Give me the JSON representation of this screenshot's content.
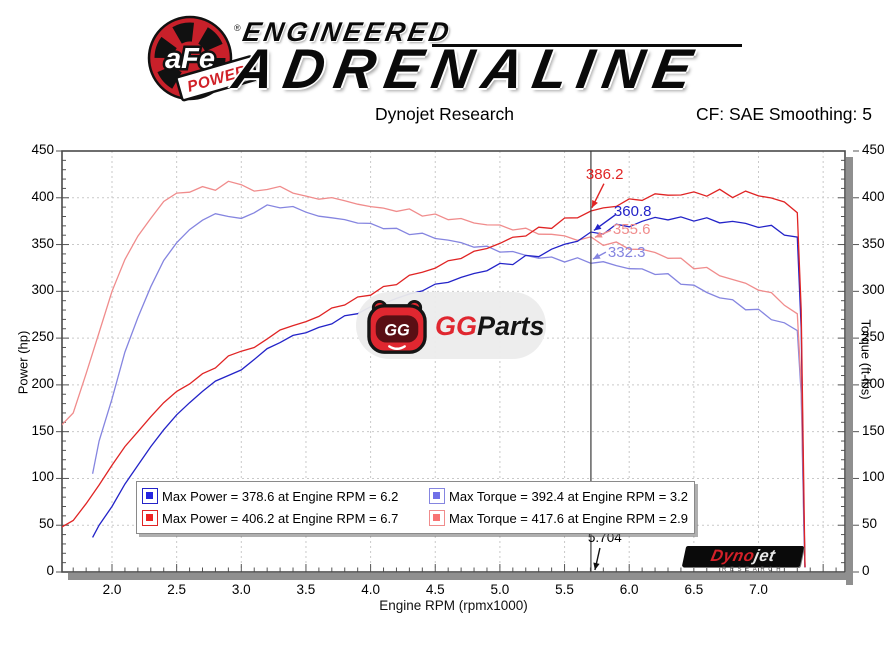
{
  "brand": {
    "afe": "aFe",
    "power": "POWER",
    "registered": "®",
    "line1": "ENGINEERED",
    "line2": "ADRENALINE"
  },
  "header": {
    "title": "Dynojet Research",
    "correction": "CF: SAE Smoothing: 5"
  },
  "watermark": {
    "mascot_letters": "GG",
    "gg": "GG",
    "parts": "Parts"
  },
  "footer_logo": {
    "dyno": "Dyno",
    "jet": "jet",
    "research": "RESEARCH"
  },
  "chart_data": {
    "type": "line",
    "title": "Dynojet Research",
    "xlabel": "Engine RPM (rpmx1000)",
    "ylabel_left": "Power (hp)",
    "ylabel_right": "Torque (ft-lbs)",
    "xlim": [
      1.61,
      7.67
    ],
    "ylim_left": [
      0,
      450
    ],
    "ylim_right": [
      0,
      450
    ],
    "grid": true,
    "x_ticks": [
      "2.0",
      "2.5",
      "3.0",
      "3.5",
      "4.0",
      "4.5",
      "5.0",
      "5.5",
      "6.0",
      "6.5",
      "7.0"
    ],
    "y_ticks": [
      "0",
      "50",
      "100",
      "150",
      "200",
      "250",
      "300",
      "350",
      "400",
      "450"
    ],
    "cursor": {
      "rpm": 5.704,
      "label": "5.704"
    },
    "series": [
      {
        "name": "power-run-1",
        "axis": "left",
        "color": "#2323c8",
        "points": [
          1.85,
          37,
          1.9,
          50,
          2.0,
          70,
          2.1,
          94,
          2.2,
          114,
          2.3,
          134,
          2.4,
          152,
          2.5,
          168,
          2.6,
          181,
          2.7,
          193,
          2.8,
          204,
          2.9,
          210,
          3.0,
          216,
          3.1,
          227,
          3.2,
          239,
          3.3,
          245,
          3.4,
          253,
          3.5,
          256,
          3.6,
          261,
          3.7,
          266,
          3.8,
          273,
          3.9,
          277,
          4.0,
          283,
          4.1,
          287,
          4.2,
          293,
          4.3,
          296,
          4.4,
          302,
          4.5,
          306,
          4.6,
          311,
          4.7,
          314,
          4.8,
          319,
          4.9,
          323,
          5.0,
          328,
          5.1,
          331,
          5.2,
          336,
          5.3,
          339,
          5.4,
          344,
          5.5,
          350,
          5.6,
          355,
          5.704,
          360.8,
          5.8,
          364,
          5.9,
          369,
          6.0,
          371,
          6.1,
          374,
          6.2,
          378.6,
          6.3,
          378,
          6.4,
          377,
          6.5,
          378,
          6.6,
          376,
          6.7,
          375,
          6.8,
          374,
          6.9,
          372,
          7.0,
          370,
          7.1,
          368,
          7.2,
          363,
          7.3,
          358,
          7.33,
          260,
          7.35,
          70,
          7.36,
          5
        ]
      },
      {
        "name": "power-run-2",
        "axis": "left",
        "color": "#e02424",
        "points": [
          1.61,
          48,
          1.7,
          55,
          1.8,
          73,
          1.9,
          93,
          2.0,
          114,
          2.1,
          134,
          2.2,
          150,
          2.3,
          166,
          2.4,
          181,
          2.5,
          193,
          2.6,
          201,
          2.7,
          212,
          2.8,
          218,
          2.9,
          231,
          3.0,
          236,
          3.1,
          240,
          3.2,
          249,
          3.3,
          259,
          3.4,
          263,
          3.5,
          268,
          3.6,
          273,
          3.7,
          282,
          3.8,
          286,
          3.9,
          293,
          4.0,
          297,
          4.1,
          304,
          4.2,
          308,
          4.3,
          317,
          4.4,
          320,
          4.5,
          326,
          4.6,
          331,
          4.7,
          337,
          4.8,
          341,
          4.9,
          347,
          5.0,
          351,
          5.1,
          357,
          5.2,
          361,
          5.3,
          366,
          5.4,
          370,
          5.5,
          376,
          5.6,
          380,
          5.704,
          386.2,
          5.8,
          388,
          5.9,
          393,
          6.0,
          396,
          6.1,
          400,
          6.2,
          402,
          6.3,
          404,
          6.4,
          403,
          6.5,
          405,
          6.6,
          404,
          6.7,
          406.2,
          6.8,
          403,
          6.9,
          405,
          7.0,
          403,
          7.1,
          400,
          7.2,
          394,
          7.3,
          384,
          7.33,
          280,
          7.35,
          90,
          7.36,
          5
        ]
      },
      {
        "name": "torque-run-1",
        "axis": "right",
        "color": "#8585e0",
        "points": [
          1.85,
          105,
          1.9,
          140,
          2.0,
          185,
          2.1,
          235,
          2.2,
          272,
          2.3,
          305,
          2.4,
          333,
          2.5,
          352,
          2.6,
          366,
          2.7,
          376,
          2.8,
          383,
          2.9,
          380,
          3.0,
          378,
          3.1,
          384,
          3.2,
          392.4,
          3.3,
          389,
          3.4,
          391,
          3.5,
          384,
          3.6,
          381,
          3.7,
          378,
          3.8,
          377,
          3.9,
          373,
          4.0,
          372,
          4.1,
          368,
          4.2,
          366,
          4.3,
          362,
          4.4,
          361,
          4.5,
          357,
          4.6,
          355,
          4.7,
          351,
          4.8,
          349,
          4.9,
          346,
          5.0,
          344,
          5.1,
          341,
          5.2,
          339,
          5.3,
          336,
          5.4,
          335,
          5.5,
          334,
          5.6,
          333,
          5.704,
          332.3,
          5.8,
          330,
          5.9,
          328,
          6.0,
          325,
          6.1,
          322,
          6.2,
          320.7,
          6.3,
          316,
          6.4,
          310,
          6.5,
          305,
          6.6,
          299,
          6.7,
          294,
          6.8,
          289,
          6.9,
          283,
          7.0,
          278,
          7.1,
          272,
          7.2,
          265,
          7.3,
          258,
          7.33,
          190,
          7.35,
          50,
          7.36,
          5
        ]
      },
      {
        "name": "torque-run-2",
        "axis": "right",
        "color": "#f08c8c",
        "points": [
          1.61,
          157,
          1.7,
          170,
          1.8,
          212,
          1.9,
          256,
          2.0,
          300,
          2.1,
          334,
          2.2,
          359,
          2.3,
          378,
          2.4,
          396,
          2.5,
          405,
          2.6,
          406,
          2.7,
          412,
          2.8,
          408,
          2.9,
          417.6,
          3.0,
          414,
          3.1,
          407,
          3.2,
          409,
          3.3,
          412,
          3.4,
          405,
          3.5,
          402,
          3.6,
          398,
          3.7,
          401,
          3.8,
          396,
          3.9,
          394,
          4.0,
          390,
          4.1,
          389,
          4.2,
          386,
          4.3,
          387,
          4.4,
          382,
          4.5,
          381,
          4.6,
          378,
          4.7,
          377,
          4.8,
          373,
          4.9,
          372,
          5.0,
          369,
          5.1,
          368,
          5.2,
          365,
          5.3,
          363,
          5.4,
          360,
          5.5,
          359,
          5.6,
          356,
          5.704,
          355.6,
          5.8,
          352,
          5.9,
          350,
          6.0,
          347,
          6.1,
          344,
          6.2,
          341,
          6.3,
          337,
          6.4,
          333,
          6.5,
          327,
          6.6,
          323,
          6.7,
          318.4,
          6.8,
          312,
          6.9,
          308,
          7.0,
          303,
          7.1,
          296,
          7.2,
          288,
          7.3,
          276,
          7.33,
          200,
          7.35,
          60,
          7.36,
          5
        ]
      }
    ],
    "annotations": [
      {
        "label": "386.2",
        "value": 386.2,
        "rpm": 5.704,
        "color": "#e02424"
      },
      {
        "label": "360.8",
        "value": 360.8,
        "rpm": 5.704,
        "color": "#2323c8"
      },
      {
        "label": "355.6",
        "value": 355.6,
        "rpm": 5.704,
        "color": "#f08c8c"
      },
      {
        "label": "332.3",
        "value": 332.3,
        "rpm": 5.704,
        "color": "#8585e0"
      }
    ],
    "legend": [
      {
        "label": "Max Power = 378.6 at Engine RPM = 6.2",
        "fill": "#2424e0",
        "border": "#2323c8"
      },
      {
        "label": "Max Power = 406.2 at Engine RPM = 6.7",
        "fill": "#ee2222",
        "border": "#e02424"
      },
      {
        "label": "Max Torque = 392.4 at Engine RPM = 3.2",
        "fill": "#7070e8",
        "border": "#8585e0"
      },
      {
        "label": "Max Torque = 417.6 at Engine RPM = 2.9",
        "fill": "#f87474",
        "border": "#f08c8c"
      }
    ]
  }
}
